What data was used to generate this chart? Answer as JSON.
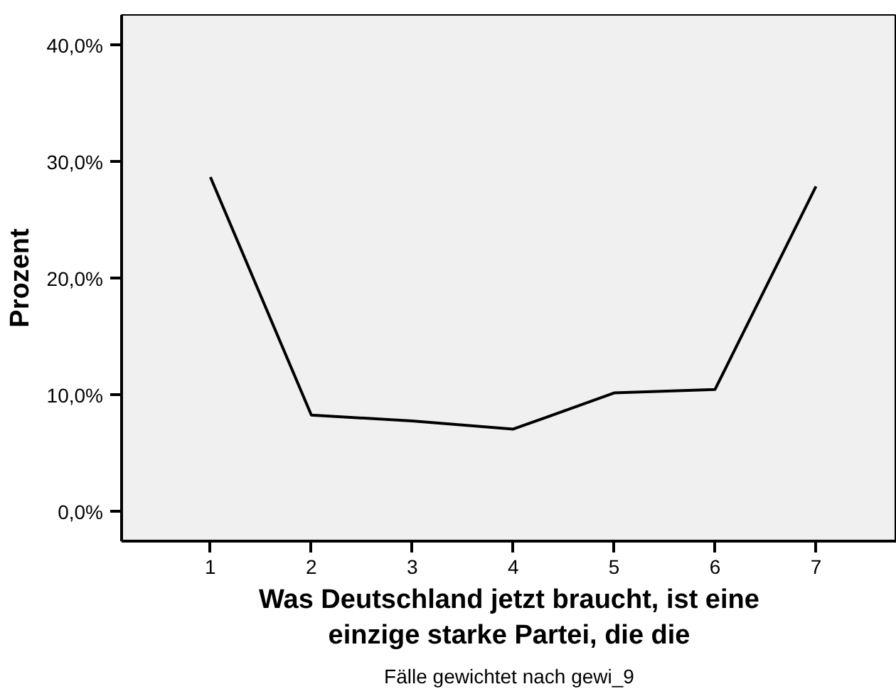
{
  "chart_data": {
    "type": "line",
    "xlabel": "Was Deutschland jetzt braucht, ist eine\neinzige starke Partei, die die",
    "ylabel": "Prozent",
    "x": [
      1,
      2,
      3,
      4,
      5,
      6,
      7
    ],
    "values": [
      28.7,
      8.3,
      7.8,
      7.1,
      10.2,
      10.5,
      27.9
    ],
    "color": "#000000",
    "xlim": [
      0.12,
      7.8
    ],
    "xticks": [
      1,
      2,
      3,
      4,
      5,
      6,
      7
    ],
    "ylim": [
      -2.5,
      42.6
    ],
    "yticks": [
      {
        "value": 0,
        "label": "0,0%"
      },
      {
        "value": 10,
        "label": "10,0%"
      },
      {
        "value": 20,
        "label": "20,0%"
      },
      {
        "value": 30,
        "label": "30,0%"
      },
      {
        "value": 40,
        "label": "40,0%"
      }
    ],
    "grid": false,
    "marker": "none",
    "line_style": "solid",
    "annotations": [
      "Fälle gewichtet nach gewi_9"
    ]
  }
}
